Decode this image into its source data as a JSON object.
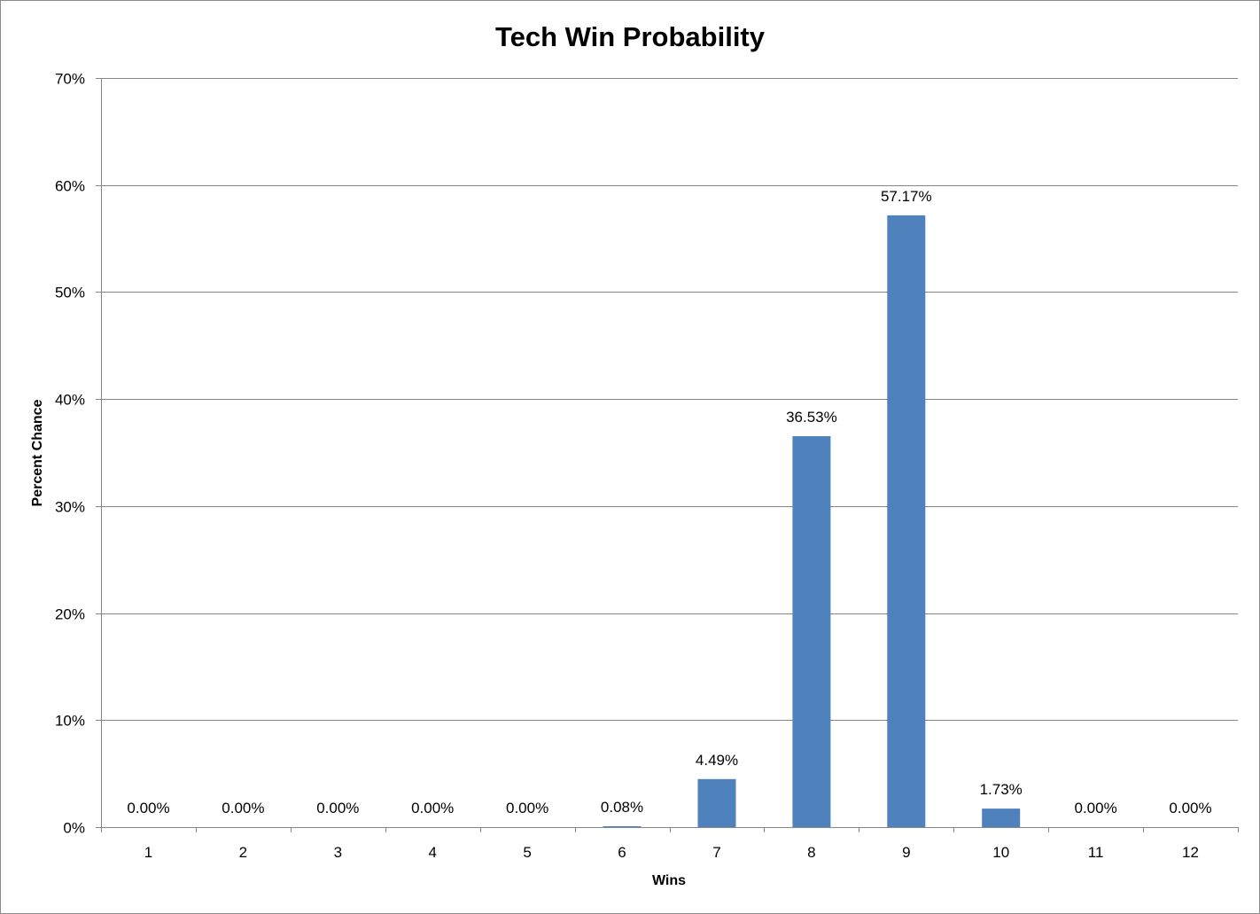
{
  "chart_data": {
    "type": "bar",
    "title": "Tech Win Probability",
    "xlabel": "Wins",
    "ylabel": "Percent Chance",
    "categories": [
      "1",
      "2",
      "3",
      "4",
      "5",
      "6",
      "7",
      "8",
      "9",
      "10",
      "11",
      "12"
    ],
    "values": [
      0.0,
      0.0,
      0.0,
      0.0,
      0.0,
      0.08,
      4.49,
      36.53,
      57.17,
      1.73,
      0.0,
      0.0
    ],
    "data_labels": [
      "0.00%",
      "0.00%",
      "0.00%",
      "0.00%",
      "0.00%",
      "0.08%",
      "4.49%",
      "36.53%",
      "57.17%",
      "1.73%",
      "0.00%",
      "0.00%"
    ],
    "y_ticks": [
      0,
      10,
      20,
      30,
      40,
      50,
      60,
      70
    ],
    "y_tick_labels": [
      "0%",
      "10%",
      "20%",
      "30%",
      "40%",
      "50%",
      "60%",
      "70%"
    ],
    "ylim": [
      0,
      70
    ],
    "grid": true,
    "legend": "none",
    "bar_color": "#4f81bd",
    "gridline_color": "#868686"
  }
}
